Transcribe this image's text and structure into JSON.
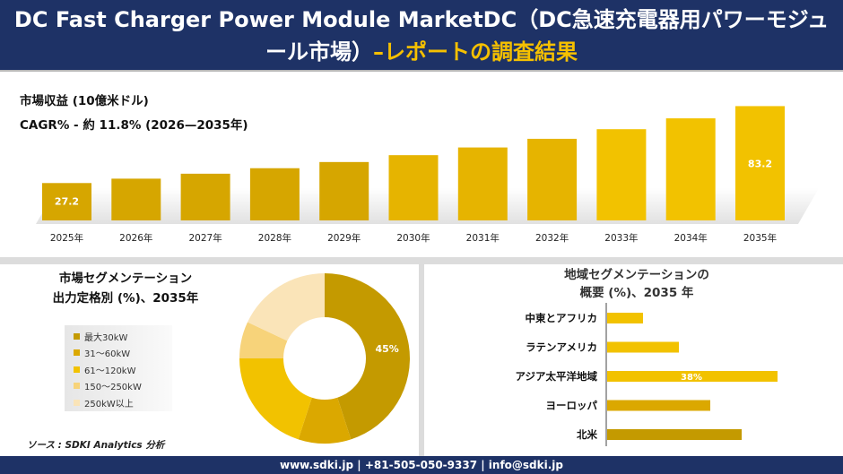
{
  "header": {
    "title_main": "DC Fast Charger Power Module MarketDC（DC急速充電器用パワーモジュール市場）",
    "title_highlight": "–レポートの調査結果"
  },
  "revenue": {
    "label": "市場収益 (10億米ドル)",
    "cagr": "CAGR% - 約 11.8% (2026—2035年)"
  },
  "segment": {
    "title_line1": "市場セグメンテーション",
    "title_line2": "出力定格別 (%)、2035年",
    "legend": [
      {
        "label": "最大30kW",
        "color": "#c49a00"
      },
      {
        "label": "31～60kW",
        "color": "#dba800"
      },
      {
        "label": "61～120kW",
        "color": "#f2c200"
      },
      {
        "label": "150～250kW",
        "color": "#f7d37a"
      },
      {
        "label": "250kW以上",
        "color": "#fae4b8"
      }
    ],
    "pie_label": "45%"
  },
  "region": {
    "title_line1": "地域セグメンテーションの",
    "title_line2": "概要 (%)、2035 年"
  },
  "source": "ソース : SDKI Analytics 分析",
  "footer": "www.sdki.jp | +81-505-050-9337 | info@sdki.jp",
  "chart_data": [
    {
      "type": "bar",
      "title": "市場収益 (10億米ドル)",
      "categories": [
        "2025年",
        "2026年",
        "2027年",
        "2028年",
        "2029年",
        "2030年",
        "2031年",
        "2032年",
        "2033年",
        "2034年",
        "2035年"
      ],
      "values": [
        27.2,
        30.4,
        34.0,
        38.0,
        42.5,
        47.5,
        53.1,
        59.4,
        66.4,
        74.3,
        83.2
      ],
      "data_labels": [
        "27.2",
        "",
        "",
        "",
        "",
        "",
        "",
        "",
        "",
        "",
        "83.2"
      ],
      "ylim": [
        0,
        90
      ]
    },
    {
      "type": "pie",
      "title": "出力定格別 (%)、2035年",
      "categories": [
        "最大30kW",
        "31～60kW",
        "61～120kW",
        "150～250kW",
        "250kW以上"
      ],
      "values": [
        45,
        10,
        20,
        7,
        18
      ],
      "data_labels": [
        "45%",
        "",
        "",
        "",
        ""
      ],
      "colors": [
        "#c49a00",
        "#dba800",
        "#f2c200",
        "#f7d37a",
        "#fae4b8"
      ]
    },
    {
      "type": "bar",
      "orientation": "horizontal",
      "title": "概要 (%)、2035 年",
      "categories": [
        "中東とアフリカ",
        "ラテンアメリカ",
        "アジア太平洋地域",
        "ヨーロッパ",
        "北米"
      ],
      "values": [
        8,
        16,
        38,
        23,
        30
      ],
      "data_labels": [
        "",
        "",
        "38%",
        "",
        ""
      ],
      "colors": [
        "#f2c200",
        "#f2c200",
        "#f2c200",
        "#dba800",
        "#c49a00"
      ],
      "xlim": [
        0,
        40
      ]
    }
  ]
}
